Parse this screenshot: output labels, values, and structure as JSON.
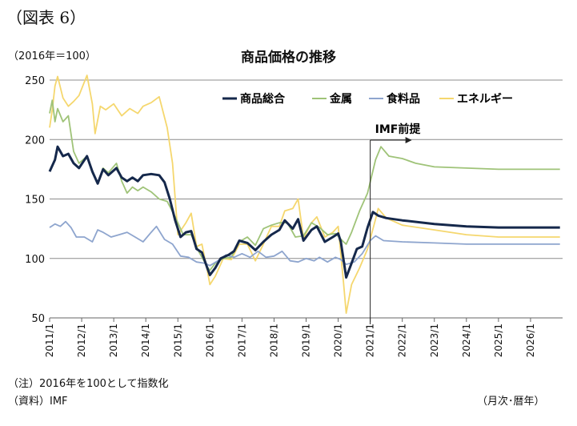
{
  "figure_label": "（図表 6）",
  "unit_label": "（2016年＝100）",
  "note": "（注）2016年を100として指数化",
  "source": "（資料）IMF",
  "period_label": "（月次･暦年）",
  "chart_data": {
    "type": "line",
    "title": "商品価格の推移",
    "xlabel": "",
    "ylabel": "",
    "ylim": [
      50,
      250
    ],
    "yticks": [
      50,
      100,
      150,
      200,
      250
    ],
    "xlim": [
      "2011/1",
      "2026/12"
    ],
    "x_tick_labels": [
      "2011/1",
      "2012/1",
      "2013/1",
      "2014/1",
      "2015/1",
      "2016/1",
      "2017/1",
      "2018/1",
      "2019/1",
      "2020/1",
      "2021/1",
      "2022/1",
      "2023/1",
      "2024/1",
      "2025/1",
      "2026/1"
    ],
    "gridlines": "horizontal",
    "legend_position": "top-right",
    "annotation": {
      "text": "IMF前提",
      "x": "2021/1",
      "style": "vertical line with arrow to right"
    },
    "series": [
      {
        "name": "商品総合",
        "color": "#15284b",
        "points": [
          [
            "2011/1",
            173
          ],
          [
            "2011/3",
            183
          ],
          [
            "2011/4",
            194
          ],
          [
            "2011/6",
            186
          ],
          [
            "2011/8",
            188
          ],
          [
            "2011/10",
            180
          ],
          [
            "2011/12",
            176
          ],
          [
            "2012/3",
            186
          ],
          [
            "2012/5",
            173
          ],
          [
            "2012/7",
            163
          ],
          [
            "2012/9",
            175
          ],
          [
            "2012/11",
            170
          ],
          [
            "2013/2",
            176
          ],
          [
            "2013/4",
            168
          ],
          [
            "2013/6",
            165
          ],
          [
            "2013/8",
            168
          ],
          [
            "2013/10",
            165
          ],
          [
            "2013/12",
            170
          ],
          [
            "2014/3",
            171
          ],
          [
            "2014/6",
            170
          ],
          [
            "2014/8",
            164
          ],
          [
            "2014/10",
            150
          ],
          [
            "2014/12",
            132
          ],
          [
            "2015/2",
            118
          ],
          [
            "2015/4",
            122
          ],
          [
            "2015/6",
            123
          ],
          [
            "2015/8",
            108
          ],
          [
            "2015/10",
            105
          ],
          [
            "2015/12",
            92
          ],
          [
            "2016/1",
            86
          ],
          [
            "2016/3",
            92
          ],
          [
            "2016/5",
            100
          ],
          [
            "2016/8",
            103
          ],
          [
            "2016/10",
            106
          ],
          [
            "2016/12",
            115
          ],
          [
            "2017/3",
            113
          ],
          [
            "2017/6",
            107
          ],
          [
            "2017/9",
            114
          ],
          [
            "2017/12",
            120
          ],
          [
            "2018/3",
            124
          ],
          [
            "2018/5",
            132
          ],
          [
            "2018/8",
            125
          ],
          [
            "2018/10",
            133
          ],
          [
            "2018/12",
            115
          ],
          [
            "2019/3",
            124
          ],
          [
            "2019/5",
            127
          ],
          [
            "2019/8",
            114
          ],
          [
            "2019/11",
            118
          ],
          [
            "2020/1",
            121
          ],
          [
            "2020/2",
            114
          ],
          [
            "2020/4",
            84
          ],
          [
            "2020/6",
            96
          ],
          [
            "2020/8",
            108
          ],
          [
            "2020/10",
            110
          ],
          [
            "2020/12",
            126
          ],
          [
            "2021/2",
            139
          ],
          [
            "2021/4",
            136
          ],
          [
            "2021/7",
            134
          ],
          [
            "2022/1",
            132
          ],
          [
            "2023/1",
            129
          ],
          [
            "2024/1",
            127
          ],
          [
            "2025/1",
            126
          ],
          [
            "2026/12",
            126
          ]
        ]
      },
      {
        "name": "金属",
        "color": "#9fc378",
        "points": [
          [
            "2011/1",
            222
          ],
          [
            "2011/2",
            233
          ],
          [
            "2011/3",
            215
          ],
          [
            "2011/4",
            226
          ],
          [
            "2011/6",
            215
          ],
          [
            "2011/8",
            220
          ],
          [
            "2011/10",
            190
          ],
          [
            "2011/12",
            180
          ],
          [
            "2012/3",
            186
          ],
          [
            "2012/5",
            172
          ],
          [
            "2012/7",
            163
          ],
          [
            "2012/9",
            176
          ],
          [
            "2012/11",
            172
          ],
          [
            "2013/2",
            180
          ],
          [
            "2013/4",
            165
          ],
          [
            "2013/6",
            155
          ],
          [
            "2013/8",
            160
          ],
          [
            "2013/10",
            157
          ],
          [
            "2013/12",
            160
          ],
          [
            "2014/3",
            156
          ],
          [
            "2014/6",
            150
          ],
          [
            "2014/9",
            148
          ],
          [
            "2014/12",
            135
          ],
          [
            "2015/3",
            120
          ],
          [
            "2015/6",
            120
          ],
          [
            "2015/9",
            105
          ],
          [
            "2015/12",
            93
          ],
          [
            "2016/1",
            90
          ],
          [
            "2016/3",
            96
          ],
          [
            "2016/6",
            100
          ],
          [
            "2016/9",
            101
          ],
          [
            "2016/12",
            114
          ],
          [
            "2017/3",
            118
          ],
          [
            "2017/6",
            111
          ],
          [
            "2017/9",
            125
          ],
          [
            "2017/12",
            128
          ],
          [
            "2018/3",
            130
          ],
          [
            "2018/6",
            130
          ],
          [
            "2018/9",
            118
          ],
          [
            "2018/12",
            119
          ],
          [
            "2019/3",
            130
          ],
          [
            "2019/6",
            126
          ],
          [
            "2019/9",
            120
          ],
          [
            "2019/12",
            121
          ],
          [
            "2020/3",
            114
          ],
          [
            "2020/4",
            112
          ],
          [
            "2020/6",
            122
          ],
          [
            "2020/9",
            140
          ],
          [
            "2020/12",
            155
          ],
          [
            "2021/3",
            183
          ],
          [
            "2021/5",
            194
          ],
          [
            "2021/8",
            186
          ],
          [
            "2022/1",
            184
          ],
          [
            "2022/6",
            180
          ],
          [
            "2023/1",
            177
          ],
          [
            "2024/1",
            176
          ],
          [
            "2025/1",
            175
          ],
          [
            "2026/12",
            175
          ]
        ]
      },
      {
        "name": "食料品",
        "color": "#8ea5ce",
        "points": [
          [
            "2011/1",
            126
          ],
          [
            "2011/3",
            129
          ],
          [
            "2011/5",
            127
          ],
          [
            "2011/7",
            131
          ],
          [
            "2011/9",
            126
          ],
          [
            "2011/11",
            118
          ],
          [
            "2012/2",
            118
          ],
          [
            "2012/5",
            114
          ],
          [
            "2012/7",
            124
          ],
          [
            "2012/9",
            122
          ],
          [
            "2012/12",
            118
          ],
          [
            "2013/3",
            120
          ],
          [
            "2013/6",
            122
          ],
          [
            "2013/9",
            118
          ],
          [
            "2013/12",
            114
          ],
          [
            "2014/3",
            122
          ],
          [
            "2014/5",
            127
          ],
          [
            "2014/8",
            116
          ],
          [
            "2014/11",
            112
          ],
          [
            "2015/2",
            102
          ],
          [
            "2015/5",
            101
          ],
          [
            "2015/8",
            97
          ],
          [
            "2015/11",
            96
          ],
          [
            "2016/1",
            94
          ],
          [
            "2016/4",
            98
          ],
          [
            "2016/7",
            103
          ],
          [
            "2016/10",
            101
          ],
          [
            "2017/1",
            104
          ],
          [
            "2017/4",
            101
          ],
          [
            "2017/7",
            106
          ],
          [
            "2017/10",
            101
          ],
          [
            "2018/1",
            102
          ],
          [
            "2018/4",
            106
          ],
          [
            "2018/7",
            98
          ],
          [
            "2018/10",
            97
          ],
          [
            "2019/1",
            100
          ],
          [
            "2019/4",
            98
          ],
          [
            "2019/6",
            101
          ],
          [
            "2019/9",
            97
          ],
          [
            "2019/12",
            101
          ],
          [
            "2020/2",
            99
          ],
          [
            "2020/4",
            95
          ],
          [
            "2020/7",
            97
          ],
          [
            "2020/10",
            104
          ],
          [
            "2021/1",
            115
          ],
          [
            "2021/3",
            119
          ],
          [
            "2021/6",
            115
          ],
          [
            "2022/1",
            114
          ],
          [
            "2023/1",
            113
          ],
          [
            "2024/1",
            112
          ],
          [
            "2025/1",
            112
          ],
          [
            "2026/12",
            112
          ]
        ]
      },
      {
        "name": "エネルギー",
        "color": "#f5d76e",
        "points": [
          [
            "2011/1",
            210
          ],
          [
            "2011/2",
            225
          ],
          [
            "2011/3",
            245
          ],
          [
            "2011/4",
            253
          ],
          [
            "2011/6",
            235
          ],
          [
            "2011/8",
            228
          ],
          [
            "2011/10",
            232
          ],
          [
            "2011/12",
            237
          ],
          [
            "2012/3",
            254
          ],
          [
            "2012/5",
            230
          ],
          [
            "2012/6",
            205
          ],
          [
            "2012/8",
            228
          ],
          [
            "2012/10",
            225
          ],
          [
            "2013/1",
            230
          ],
          [
            "2013/4",
            220
          ],
          [
            "2013/7",
            226
          ],
          [
            "2013/10",
            222
          ],
          [
            "2013/12",
            228
          ],
          [
            "2014/3",
            231
          ],
          [
            "2014/6",
            236
          ],
          [
            "2014/9",
            210
          ],
          [
            "2014/11",
            180
          ],
          [
            "2015/1",
            120
          ],
          [
            "2015/4",
            130
          ],
          [
            "2015/6",
            138
          ],
          [
            "2015/8",
            110
          ],
          [
            "2015/10",
            112
          ],
          [
            "2015/12",
            90
          ],
          [
            "2016/1",
            78
          ],
          [
            "2016/3",
            85
          ],
          [
            "2016/6",
            100
          ],
          [
            "2016/9",
            99
          ],
          [
            "2016/12",
            112
          ],
          [
            "2017/3",
            112
          ],
          [
            "2017/6",
            98
          ],
          [
            "2017/9",
            112
          ],
          [
            "2017/12",
            127
          ],
          [
            "2018/3",
            127
          ],
          [
            "2018/5",
            140
          ],
          [
            "2018/8",
            142
          ],
          [
            "2018/10",
            150
          ],
          [
            "2018/12",
            117
          ],
          [
            "2019/3",
            130
          ],
          [
            "2019/5",
            135
          ],
          [
            "2019/8",
            118
          ],
          [
            "2019/11",
            122
          ],
          [
            "2020/1",
            127
          ],
          [
            "2020/3",
            80
          ],
          [
            "2020/4",
            54
          ],
          [
            "2020/6",
            78
          ],
          [
            "2020/9",
            92
          ],
          [
            "2020/12",
            108
          ],
          [
            "2021/3",
            133
          ],
          [
            "2021/4",
            142
          ],
          [
            "2021/7",
            134
          ],
          [
            "2022/1",
            128
          ],
          [
            "2023/1",
            124
          ],
          [
            "2024/1",
            120
          ],
          [
            "2025/1",
            118
          ],
          [
            "2026/12",
            118
          ]
        ]
      }
    ]
  }
}
